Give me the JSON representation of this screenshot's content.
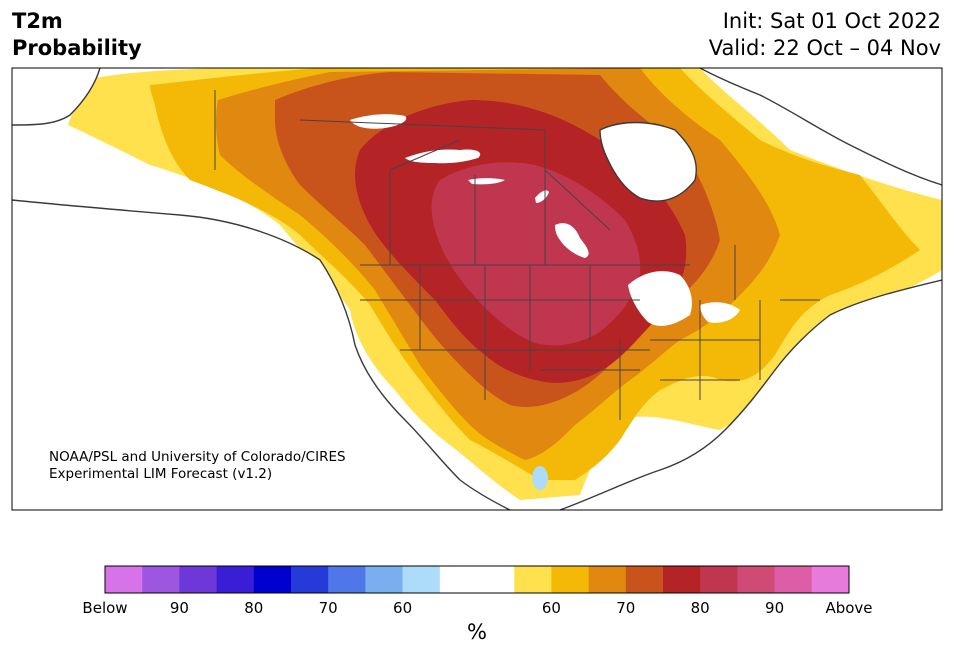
{
  "title": {
    "left_line1": "T2m",
    "left_line2": "Probability",
    "right_line1": "Init: Sat 01 Oct 2022",
    "right_line2": "Valid: 22 Oct – 04 Nov"
  },
  "credit": {
    "line1": "NOAA/PSL and University of Colorado/CIRES",
    "line2": "Experimental LIM Forecast (v1.2)"
  },
  "colorbar": {
    "colors": [
      "#d773e9",
      "#9d56e0",
      "#6e38d8",
      "#3a1ed6",
      "#0000cf",
      "#2639d9",
      "#5077e8",
      "#79afef",
      "#acdcfa",
      "#ffffff",
      "#ffffff",
      "#ffe04d",
      "#f3b906",
      "#e08810",
      "#c9541b",
      "#b42326",
      "#c1364f",
      "#d04a76",
      "#dd5ea7",
      "#e87ade"
    ],
    "tick_labels": [
      "Below",
      "90",
      "80",
      "70",
      "60",
      "60",
      "70",
      "80",
      "90",
      "Above"
    ],
    "unit": "%"
  },
  "map": {
    "region": "North America",
    "regions": [
      {
        "level": "60",
        "color": "#ffe04d"
      },
      {
        "level": "65",
        "color": "#f3b906"
      },
      {
        "level": "70",
        "color": "#e08810"
      },
      {
        "level": "75",
        "color": "#c9541b"
      },
      {
        "level": "80",
        "color": "#b42326"
      },
      {
        "level": "85",
        "color": "#c1364f"
      },
      {
        "level": "-60",
        "color": "#acdcfa"
      }
    ]
  }
}
